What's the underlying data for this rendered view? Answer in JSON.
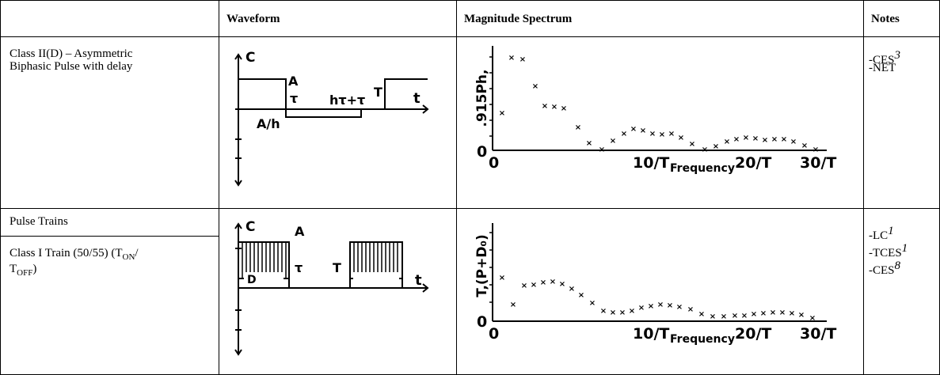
{
  "header": {
    "col1": "",
    "col2": "Waveform",
    "col3": "Magnitude Spectrum",
    "col4": "Notes"
  },
  "rows": [
    {
      "name_line1": "Class II(D) – Asymmetric",
      "name_line2": "Biphasic Pulse with delay",
      "notes": [
        {
          "text": "-CES",
          "sup": "3"
        },
        {
          "text": "-NET",
          "sup": ""
        }
      ],
      "waveform": {
        "y_label": "C",
        "labels": [
          "A",
          "τ",
          "hτ+τ",
          "T",
          "t",
          "A/h"
        ]
      },
      "spectrum": {
        "y_label": ".915Ph,",
        "origin_labels": [
          "0",
          "0"
        ],
        "x_ticks": [
          "10/T",
          "20/T",
          "30/T"
        ],
        "x_title": "Frequency"
      }
    },
    {
      "section_label": "Pulse Trains",
      "name_line1": "Class I Train (50/55) (T",
      "name_sub1": "ON",
      "name_mid": "/",
      "name_line2_start": "T",
      "name_sub2": "OFF",
      "name_end": ")",
      "notes": [
        {
          "text": "-LC",
          "sup": "1"
        },
        {
          "text": "-TCES",
          "sup": "1"
        },
        {
          "text": "-CES",
          "sup": "8"
        }
      ],
      "waveform": {
        "y_label": "C",
        "labels": [
          "A",
          "D",
          "τ",
          "T",
          "t"
        ]
      },
      "spectrum": {
        "y_label": "T,(P+D₀)",
        "origin_labels": [
          "0",
          "0"
        ],
        "x_ticks": [
          "10/T",
          "20/T",
          "30/T"
        ],
        "x_title": "Frequency"
      }
    }
  ]
}
